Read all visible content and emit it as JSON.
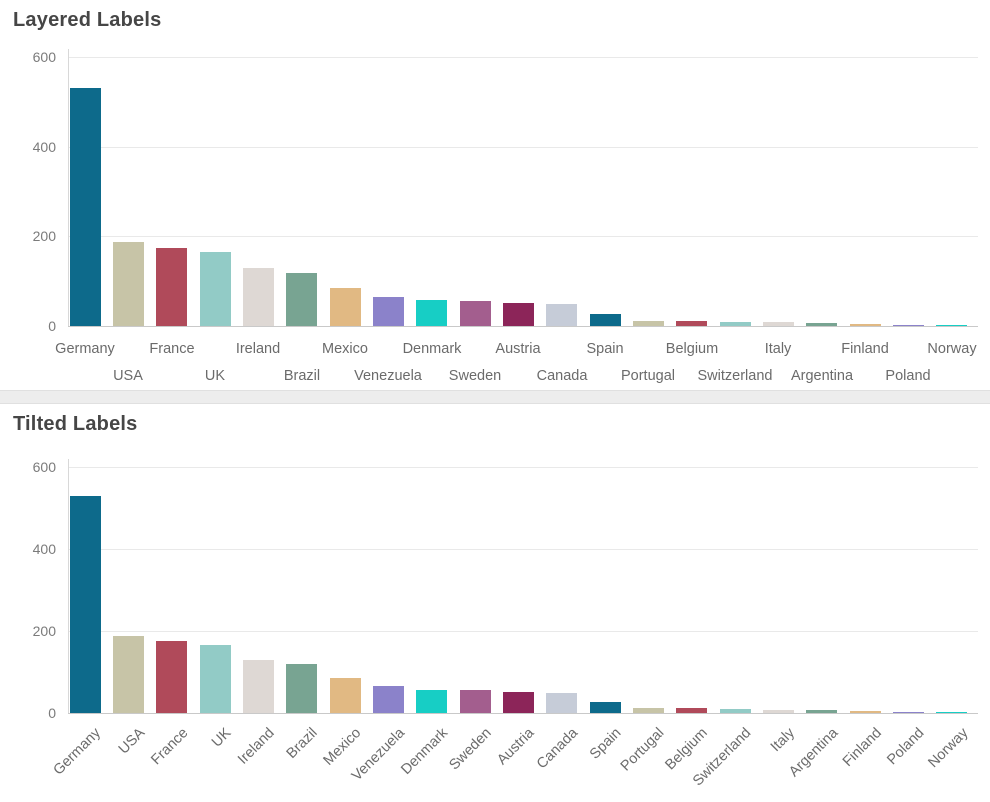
{
  "page": {
    "background": "#ffffff",
    "divider_color": "#ededed"
  },
  "style": {
    "title_color": "#464646",
    "tick_label_color": "#7b7b7b",
    "x_label_color": "#6b6b6b",
    "gridline_color": "#e9e9e9",
    "baseline_color": "#c9c9c9",
    "axisline_color": "#d8d8d8"
  },
  "chart_data": [
    {
      "type": "bar",
      "title": "Layered Labels",
      "x_label_layout": "layered",
      "categories": [
        "Germany",
        "USA",
        "France",
        "UK",
        "Ireland",
        "Brazil",
        "Mexico",
        "Venezuela",
        "Denmark",
        "Sweden",
        "Austria",
        "Canada",
        "Spain",
        "Portugal",
        "Belgium",
        "Switzerland",
        "Italy",
        "Argentina",
        "Finland",
        "Poland",
        "Norway"
      ],
      "values": [
        530,
        187,
        175,
        166,
        130,
        119,
        85,
        65,
        57,
        55,
        52,
        50,
        26,
        12,
        12,
        10,
        8,
        7,
        5,
        3,
        1
      ],
      "xlabel": "",
      "ylabel": "",
      "ylim": [
        0,
        600
      ],
      "yticks": [
        0,
        200,
        400,
        600
      ],
      "grid": true,
      "legend": false,
      "palette": [
        "#0d6a8b",
        "#c7c4a7",
        "#b04a5a",
        "#92cbc6",
        "#ded8d4",
        "#78a492",
        "#e1b983",
        "#8b82ca",
        "#17cec5",
        "#a35e8e",
        "#8c2559",
        "#c6ccd8"
      ]
    },
    {
      "type": "bar",
      "title": "Tilted Labels",
      "x_label_layout": "tilted",
      "categories": [
        "Germany",
        "USA",
        "France",
        "UK",
        "Ireland",
        "Brazil",
        "Mexico",
        "Venezuela",
        "Denmark",
        "Sweden",
        "Austria",
        "Canada",
        "Spain",
        "Portugal",
        "Belgium",
        "Switzerland",
        "Italy",
        "Argentina",
        "Finland",
        "Poland",
        "Norway"
      ],
      "values": [
        530,
        187,
        175,
        166,
        130,
        119,
        85,
        65,
        57,
        55,
        52,
        50,
        26,
        12,
        12,
        10,
        8,
        7,
        5,
        3,
        1
      ],
      "xlabel": "",
      "ylabel": "",
      "ylim": [
        0,
        600
      ],
      "yticks": [
        0,
        200,
        400,
        600
      ],
      "grid": true,
      "legend": false,
      "palette": [
        "#0d6a8b",
        "#c7c4a7",
        "#b04a5a",
        "#92cbc6",
        "#ded8d4",
        "#78a492",
        "#e1b983",
        "#8b82ca",
        "#17cec5",
        "#a35e8e",
        "#8c2559",
        "#c6ccd8"
      ]
    }
  ]
}
